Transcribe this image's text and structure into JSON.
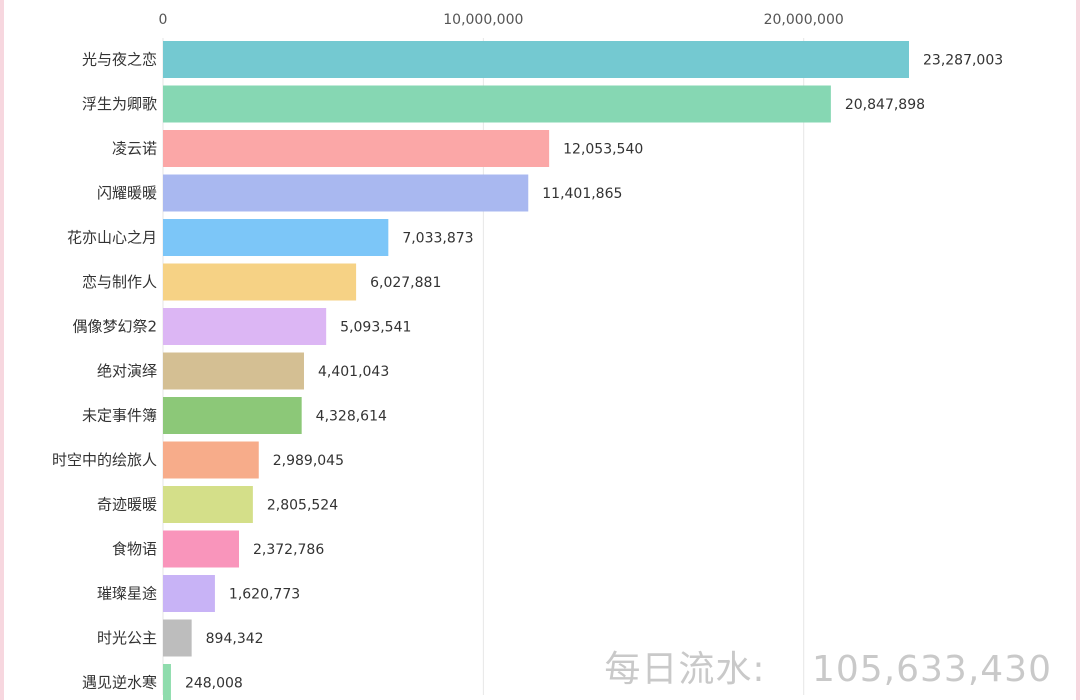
{
  "chart_data": {
    "type": "bar",
    "orientation": "horizontal",
    "categories": [
      "光与夜之恋",
      "浮生为卿歌",
      "凌云诺",
      "闪耀暖暖",
      "花亦山心之月",
      "恋与制作人",
      "偶像梦幻祭2",
      "绝对演绎",
      "未定事件簿",
      "时空中的绘旅人",
      "奇迹暖暖",
      "食物语",
      "璀璨星途",
      "时光公主",
      "遇见逆水寒"
    ],
    "values": [
      23287003,
      20847898,
      12053540,
      11401865,
      7033873,
      6027881,
      5093541,
      4401043,
      4328614,
      2989045,
      2805524,
      2372786,
      1620773,
      894342,
      248008
    ],
    "value_labels": [
      "23,287,003",
      "20,847,898",
      "12,053,540",
      "11,401,865",
      "7,033,873",
      "6,027,881",
      "5,093,541",
      "4,401,043",
      "4,328,614",
      "2,989,045",
      "2,805,524",
      "2,372,786",
      "1,620,773",
      "894,342",
      "248,008"
    ],
    "colors": [
      "#74c9d1",
      "#86d7b3",
      "#fba7a7",
      "#a9b8f0",
      "#7cc6f8",
      "#f6d285",
      "#dcb6f4",
      "#d4bf93",
      "#8cc878",
      "#f7ac8a",
      "#d4df89",
      "#f995bb",
      "#c8b3f6",
      "#bdbdbd",
      "#8fdcad"
    ],
    "x_ticks": [
      0,
      10000000,
      20000000
    ],
    "x_tick_labels": [
      "0",
      "10,000,000",
      "20,000,000"
    ],
    "xlim": [
      0,
      23287003
    ],
    "grid": "vertical",
    "axis_position": "top",
    "title": "",
    "xlabel": "",
    "ylabel": ""
  },
  "total": {
    "label": "每日流水:",
    "value": "105,633,430"
  }
}
